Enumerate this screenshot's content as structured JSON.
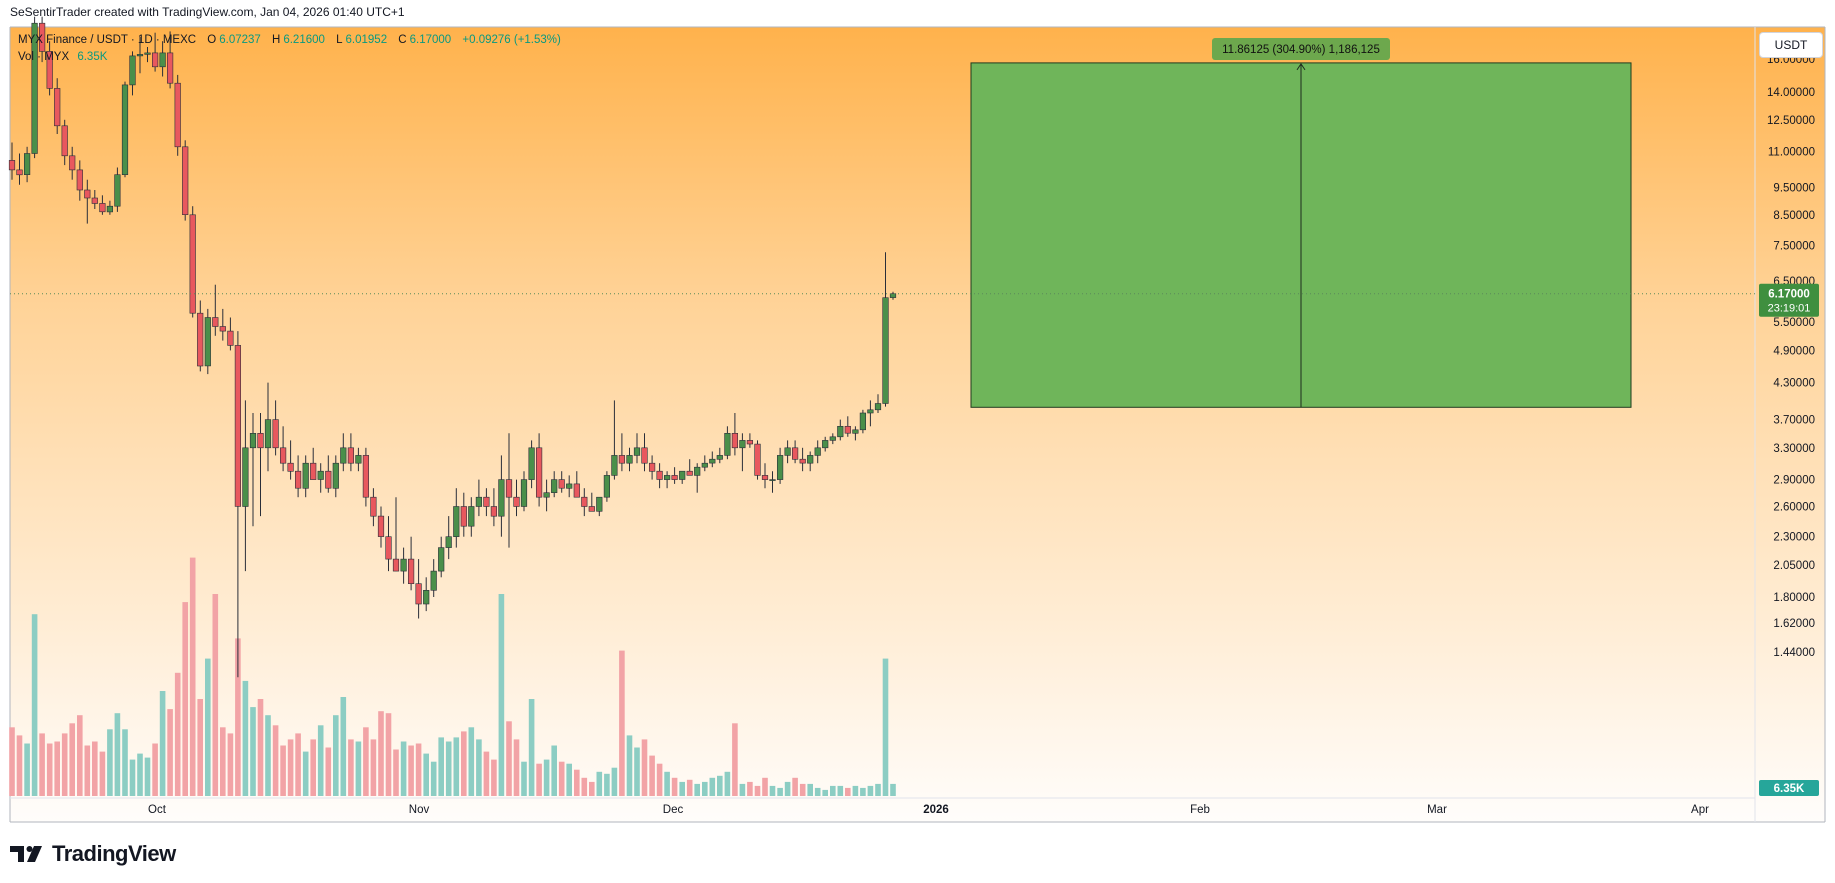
{
  "header": {
    "credit": "SeSentirTrader created with TradingView.com, Jan 04, 2026 01:40 UTC+1"
  },
  "legend": {
    "symbol": "MYX Finance / USDT · 1D · MEXC",
    "o_label": "O",
    "o": "6.07237",
    "h_label": "H",
    "h": "6.21600",
    "l_label": "L",
    "l": "6.01952",
    "c_label": "C",
    "c": "6.17000",
    "change": "+0.09276 (+1.53%)",
    "vol_label": "Vol · MYX",
    "vol": "6.35K"
  },
  "currency": "USDT",
  "brand": "TradingView",
  "colors": {
    "up": "#4a8f4a",
    "down": "#e8585e",
    "vol_up": "#8ccdc3",
    "vol_down": "#f2a3a6",
    "box": "#6fb55a",
    "price_tag": "#3f8f3f",
    "vol_tag": "#26a69a"
  },
  "chart_data": {
    "type": "candlestick",
    "scale": "log",
    "ylim": [
      1.3,
      18.5
    ],
    "y_ticks": [
      "16.00000",
      "14.00000",
      "12.50000",
      "11.00000",
      "9.50000",
      "8.50000",
      "7.50000",
      "6.50000",
      "5.50000",
      "4.90000",
      "4.30000",
      "3.70000",
      "3.30000",
      "2.90000",
      "2.60000",
      "2.30000",
      "2.05000",
      "1.80000",
      "1.62000",
      "1.44000"
    ],
    "x_ticks": [
      "Oct",
      "Nov",
      "Dec",
      "2026",
      "Feb",
      "Mar",
      "Apr"
    ],
    "current_price": "6.17000",
    "countdown": "23:19:01",
    "volume_last": "6.35K",
    "measure_box": {
      "from_price": 3.89,
      "to_price": 15.75,
      "label": "11.86125 (304.90%) 1,186,125"
    },
    "candles": [
      [
        10.6,
        11.4,
        9.8,
        10.2
      ],
      [
        10.2,
        10.9,
        9.6,
        10.0
      ],
      [
        10.0,
        11.2,
        9.7,
        10.9
      ],
      [
        10.9,
        19.0,
        10.7,
        18.5
      ],
      [
        18.5,
        19.0,
        15.8,
        16.5
      ],
      [
        16.5,
        17.2,
        13.8,
        14.2
      ],
      [
        14.2,
        14.8,
        11.8,
        12.2
      ],
      [
        12.2,
        12.5,
        10.4,
        10.8
      ],
      [
        10.8,
        11.2,
        9.8,
        10.2
      ],
      [
        10.2,
        10.6,
        9.0,
        9.4
      ],
      [
        9.4,
        9.8,
        8.2,
        9.1
      ],
      [
        9.1,
        9.4,
        8.7,
        8.9
      ],
      [
        8.9,
        9.2,
        8.5,
        8.6
      ],
      [
        8.6,
        9.0,
        8.5,
        8.8
      ],
      [
        8.8,
        10.3,
        8.6,
        10.0
      ],
      [
        10.0,
        14.6,
        9.9,
        14.4
      ],
      [
        14.4,
        16.5,
        13.8,
        16.2
      ],
      [
        16.2,
        17.5,
        15.1,
        16.3
      ],
      [
        16.3,
        16.8,
        15.8,
        16.4
      ],
      [
        16.4,
        17.8,
        15.2,
        15.5
      ],
      [
        15.5,
        17.2,
        14.9,
        16.4
      ],
      [
        16.4,
        17.9,
        14.2,
        14.5
      ],
      [
        14.5,
        15.0,
        10.8,
        11.2
      ],
      [
        11.2,
        11.5,
        8.3,
        8.5
      ],
      [
        8.5,
        8.8,
        5.6,
        5.7
      ],
      [
        5.7,
        6.0,
        4.5,
        4.6
      ],
      [
        4.6,
        5.8,
        4.45,
        5.6
      ],
      [
        5.6,
        6.4,
        5.2,
        5.4
      ],
      [
        5.4,
        5.8,
        5.1,
        5.3
      ],
      [
        5.3,
        5.6,
        4.9,
        5.0
      ],
      [
        5.0,
        5.3,
        1.3,
        2.6
      ],
      [
        2.6,
        4.0,
        2.0,
        3.3
      ],
      [
        3.3,
        3.8,
        2.4,
        3.5
      ],
      [
        3.5,
        3.8,
        2.5,
        3.3
      ],
      [
        3.3,
        4.3,
        3.0,
        3.7
      ],
      [
        3.7,
        4.0,
        3.2,
        3.3
      ],
      [
        3.3,
        3.6,
        3.0,
        3.1
      ],
      [
        3.1,
        3.4,
        2.9,
        3.0
      ],
      [
        3.0,
        3.2,
        2.7,
        2.8
      ],
      [
        2.8,
        3.2,
        2.7,
        3.1
      ],
      [
        3.1,
        3.3,
        2.9,
        2.9
      ],
      [
        2.9,
        3.1,
        2.75,
        3.0
      ],
      [
        3.0,
        3.2,
        2.75,
        2.8
      ],
      [
        2.8,
        3.2,
        2.7,
        3.1
      ],
      [
        3.1,
        3.5,
        3.0,
        3.3
      ],
      [
        3.3,
        3.5,
        3.0,
        3.1
      ],
      [
        3.1,
        3.3,
        3.0,
        3.2
      ],
      [
        3.2,
        3.3,
        2.6,
        2.7
      ],
      [
        2.7,
        2.8,
        2.4,
        2.5
      ],
      [
        2.5,
        2.6,
        2.2,
        2.3
      ],
      [
        2.3,
        2.5,
        2.0,
        2.1
      ],
      [
        2.1,
        2.7,
        2.0,
        2.0
      ],
      [
        2.0,
        2.2,
        1.9,
        2.1
      ],
      [
        2.1,
        2.3,
        1.85,
        1.9
      ],
      [
        1.9,
        2.1,
        1.65,
        1.75
      ],
      [
        1.75,
        1.95,
        1.7,
        1.85
      ],
      [
        1.85,
        2.1,
        1.8,
        2.0
      ],
      [
        2.0,
        2.3,
        1.95,
        2.2
      ],
      [
        2.2,
        2.5,
        2.1,
        2.3
      ],
      [
        2.3,
        2.8,
        2.2,
        2.6
      ],
      [
        2.6,
        2.75,
        2.3,
        2.4
      ],
      [
        2.4,
        2.7,
        2.3,
        2.6
      ],
      [
        2.6,
        2.9,
        2.5,
        2.7
      ],
      [
        2.7,
        2.8,
        2.5,
        2.6
      ],
      [
        2.6,
        2.8,
        2.4,
        2.5
      ],
      [
        2.5,
        3.2,
        2.3,
        2.9
      ],
      [
        2.9,
        3.5,
        2.2,
        2.7
      ],
      [
        2.7,
        2.9,
        2.5,
        2.6
      ],
      [
        2.6,
        3.0,
        2.55,
        2.9
      ],
      [
        2.9,
        3.4,
        2.8,
        3.3
      ],
      [
        3.3,
        3.5,
        2.6,
        2.7
      ],
      [
        2.7,
        2.9,
        2.55,
        2.75
      ],
      [
        2.75,
        3.0,
        2.7,
        2.9
      ],
      [
        2.9,
        3.0,
        2.75,
        2.8
      ],
      [
        2.8,
        2.95,
        2.7,
        2.85
      ],
      [
        2.85,
        3.0,
        2.75,
        2.7
      ],
      [
        2.7,
        2.8,
        2.5,
        2.6
      ],
      [
        2.6,
        2.75,
        2.55,
        2.55
      ],
      [
        2.55,
        2.7,
        2.5,
        2.7
      ],
      [
        2.7,
        3.0,
        2.65,
        2.95
      ],
      [
        2.95,
        4.0,
        2.9,
        3.2
      ],
      [
        3.2,
        3.5,
        3.0,
        3.1
      ],
      [
        3.1,
        3.3,
        3.0,
        3.2
      ],
      [
        3.2,
        3.5,
        3.1,
        3.3
      ],
      [
        3.3,
        3.5,
        3.0,
        3.1
      ],
      [
        3.1,
        3.2,
        2.9,
        3.0
      ],
      [
        3.0,
        3.1,
        2.8,
        2.9
      ],
      [
        2.9,
        3.0,
        2.8,
        2.95
      ],
      [
        2.95,
        3.05,
        2.85,
        2.9
      ],
      [
        2.9,
        3.0,
        2.85,
        3.0
      ],
      [
        3.0,
        3.15,
        2.95,
        2.95
      ],
      [
        2.95,
        3.1,
        2.75,
        3.05
      ],
      [
        3.05,
        3.2,
        3.0,
        3.1
      ],
      [
        3.1,
        3.25,
        3.05,
        3.15
      ],
      [
        3.15,
        3.3,
        3.1,
        3.2
      ],
      [
        3.2,
        3.6,
        3.15,
        3.5
      ],
      [
        3.5,
        3.8,
        3.2,
        3.3
      ],
      [
        3.3,
        3.5,
        3.0,
        3.4
      ],
      [
        3.4,
        3.5,
        3.3,
        3.35
      ],
      [
        3.35,
        3.4,
        2.9,
        2.95
      ],
      [
        2.95,
        3.1,
        2.8,
        2.9
      ],
      [
        2.9,
        3.0,
        2.75,
        2.9
      ],
      [
        2.9,
        3.3,
        2.85,
        3.2
      ],
      [
        3.2,
        3.4,
        3.1,
        3.3
      ],
      [
        3.3,
        3.4,
        3.1,
        3.15
      ],
      [
        3.15,
        3.3,
        3.0,
        3.1
      ],
      [
        3.1,
        3.25,
        3.0,
        3.2
      ],
      [
        3.2,
        3.4,
        3.1,
        3.3
      ],
      [
        3.3,
        3.45,
        3.25,
        3.4
      ],
      [
        3.4,
        3.5,
        3.35,
        3.45
      ],
      [
        3.45,
        3.7,
        3.4,
        3.6
      ],
      [
        3.6,
        3.75,
        3.45,
        3.5
      ],
      [
        3.5,
        3.6,
        3.4,
        3.55
      ],
      [
        3.55,
        3.85,
        3.5,
        3.8
      ],
      [
        3.8,
        4.0,
        3.6,
        3.85
      ],
      [
        3.85,
        4.1,
        3.8,
        3.95
      ],
      [
        3.95,
        7.3,
        3.9,
        6.07
      ],
      [
        6.07237,
        6.216,
        6.01952,
        6.17
      ]
    ],
    "volumes": [
      0.34,
      0.3,
      0.26,
      0.9,
      0.31,
      0.26,
      0.27,
      0.31,
      0.36,
      0.4,
      0.25,
      0.27,
      0.22,
      0.33,
      0.41,
      0.33,
      0.18,
      0.21,
      0.19,
      0.26,
      0.52,
      0.43,
      0.61,
      0.96,
      1.18,
      0.48,
      0.68,
      1.0,
      0.34,
      0.31,
      0.78,
      0.57,
      0.44,
      0.48,
      0.4,
      0.35,
      0.25,
      0.28,
      0.31,
      0.22,
      0.28,
      0.35,
      0.24,
      0.4,
      0.49,
      0.28,
      0.27,
      0.34,
      0.28,
      0.42,
      0.41,
      0.23,
      0.27,
      0.25,
      0.26,
      0.21,
      0.17,
      0.29,
      0.27,
      0.29,
      0.32,
      0.34,
      0.28,
      0.22,
      0.18,
      1.0,
      0.37,
      0.28,
      0.17,
      0.48,
      0.16,
      0.18,
      0.25,
      0.17,
      0.16,
      0.13,
      0.09,
      0.07,
      0.12,
      0.11,
      0.14,
      0.72,
      0.3,
      0.24,
      0.28,
      0.2,
      0.16,
      0.12,
      0.09,
      0.07,
      0.08,
      0.06,
      0.07,
      0.09,
      0.1,
      0.12,
      0.36,
      0.06,
      0.07,
      0.05,
      0.09,
      0.05,
      0.04,
      0.07,
      0.09,
      0.06,
      0.06,
      0.04,
      0.03,
      0.05,
      0.05,
      0.04,
      0.05,
      0.04,
      0.05,
      0.06,
      0.68,
      0.06
    ]
  }
}
